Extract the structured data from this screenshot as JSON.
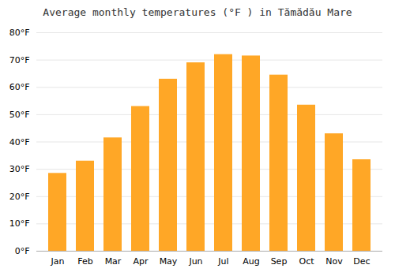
{
  "chart_data": {
    "type": "bar",
    "title": "Average monthly temperatures (°F ) in Tămădău Mare",
    "categories": [
      "Jan",
      "Feb",
      "Mar",
      "Apr",
      "May",
      "Jun",
      "Jul",
      "Aug",
      "Sep",
      "Oct",
      "Nov",
      "Dec"
    ],
    "values": [
      28.5,
      33,
      41.5,
      53,
      63,
      69,
      72,
      71.5,
      64.5,
      53.5,
      43,
      33.5
    ],
    "color": "#FFA726",
    "ylim": [
      0,
      80
    ],
    "yticks": [
      {
        "value": 0,
        "label": "0°F"
      },
      {
        "value": 10,
        "label": "10°F"
      },
      {
        "value": 20,
        "label": "20°F"
      },
      {
        "value": 30,
        "label": "30°F"
      },
      {
        "value": 40,
        "label": "40°F"
      },
      {
        "value": 50,
        "label": "50°F"
      },
      {
        "value": 60,
        "label": "60°F"
      },
      {
        "value": 70,
        "label": "70°F"
      },
      {
        "value": 80,
        "label": "80°F"
      }
    ],
    "grid": true
  }
}
